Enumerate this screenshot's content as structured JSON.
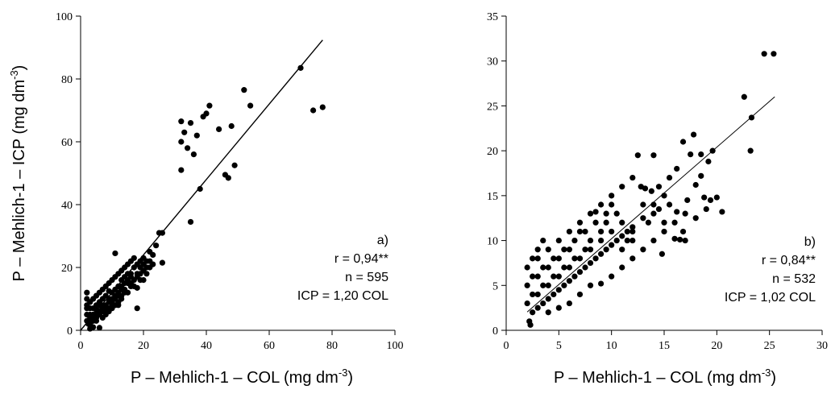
{
  "chart_data": [
    {
      "type": "scatter",
      "panel_label": "a)",
      "stats": [
        "r = 0,94**",
        "n = 595",
        "ICP = 1,20 COL"
      ],
      "x_label": "P – Mehlich-1 – COL (mg dm",
      "x_label_sup": "-3",
      "x_label_close": ")",
      "y_label": "P – Mehlich-1 – ICP (mg dm",
      "y_label_sup": "-3",
      "y_label_close": ")",
      "xlim": [
        0,
        100
      ],
      "ylim": [
        0,
        100
      ],
      "xticks": [
        0,
        20,
        40,
        60,
        80,
        100
      ],
      "yticks": [
        0,
        20,
        40,
        60,
        80,
        100
      ],
      "ytick_labels": [
        "0",
        "20",
        "40",
        "60",
        "80",
        "100"
      ],
      "xtick_labels": [
        "0",
        "20",
        "40",
        "60",
        "80",
        "100"
      ],
      "grid": false,
      "fit_line": {
        "slope": 1.2,
        "x_range": [
          0,
          77
        ]
      },
      "points": [
        [
          32,
          66.5
        ],
        [
          33,
          63
        ],
        [
          35,
          66
        ],
        [
          32,
          60
        ],
        [
          32,
          51
        ],
        [
          34,
          58
        ],
        [
          36,
          56
        ],
        [
          37,
          62
        ],
        [
          38,
          45
        ],
        [
          39,
          68
        ],
        [
          40,
          69
        ],
        [
          41,
          71.5
        ],
        [
          44,
          64
        ],
        [
          46,
          49.5
        ],
        [
          47,
          48.5
        ],
        [
          48,
          65
        ],
        [
          49,
          52.5
        ],
        [
          52,
          76.5
        ],
        [
          54,
          71.5
        ],
        [
          70,
          83.5
        ],
        [
          74,
          70
        ],
        [
          77,
          71
        ],
        [
          35,
          34.5
        ],
        [
          25,
          31
        ],
        [
          26,
          31
        ],
        [
          24,
          27
        ],
        [
          22,
          25
        ],
        [
          21,
          22
        ],
        [
          26,
          21.5
        ],
        [
          20,
          19
        ],
        [
          19,
          16
        ],
        [
          18,
          13.5
        ],
        [
          18,
          7
        ],
        [
          15,
          15
        ],
        [
          13,
          13
        ],
        [
          12,
          11
        ],
        [
          11,
          24.5
        ],
        [
          10,
          9
        ],
        [
          9,
          12.5
        ],
        [
          8,
          7
        ],
        [
          7,
          10
        ],
        [
          6,
          8
        ],
        [
          5,
          6.5
        ],
        [
          4,
          5
        ],
        [
          3,
          4
        ],
        [
          3,
          7
        ],
        [
          2,
          3
        ],
        [
          2,
          10
        ],
        [
          2,
          12
        ],
        [
          3,
          0.5
        ],
        [
          2.5,
          2
        ],
        [
          4,
          1
        ],
        [
          6,
          0.8
        ],
        [
          5,
          3
        ],
        [
          7,
          4
        ],
        [
          8,
          5
        ],
        [
          9,
          6
        ],
        [
          10,
          8
        ],
        [
          11,
          10
        ],
        [
          12,
          14
        ],
        [
          13,
          16
        ],
        [
          14,
          12
        ],
        [
          15,
          18
        ],
        [
          16,
          17
        ],
        [
          17,
          20
        ],
        [
          16,
          14
        ],
        [
          14,
          17
        ],
        [
          13,
          10
        ],
        [
          12,
          8
        ],
        [
          11,
          13
        ],
        [
          10,
          12
        ],
        [
          9,
          10
        ],
        [
          8,
          11
        ],
        [
          7,
          8
        ],
        [
          6,
          9
        ],
        [
          5,
          8
        ],
        [
          4,
          7
        ],
        [
          3,
          5
        ],
        [
          2,
          5
        ],
        [
          2,
          7
        ],
        [
          2,
          8
        ],
        [
          3,
          9
        ],
        [
          4,
          10
        ],
        [
          5,
          11
        ],
        [
          6,
          12
        ],
        [
          7,
          13
        ],
        [
          8,
          14
        ],
        [
          9,
          15
        ],
        [
          10,
          16
        ],
        [
          11,
          17
        ],
        [
          12,
          18
        ],
        [
          13,
          19
        ],
        [
          14,
          20
        ],
        [
          15,
          21
        ],
        [
          16,
          22
        ],
        [
          17,
          23
        ],
        [
          18,
          21
        ],
        [
          19,
          20
        ],
        [
          20,
          23
        ],
        [
          21,
          18
        ],
        [
          22,
          20
        ],
        [
          23,
          24
        ],
        [
          3,
          3
        ],
        [
          4,
          4
        ],
        [
          5,
          5
        ],
        [
          6,
          6
        ],
        [
          7,
          7
        ],
        [
          8,
          8
        ],
        [
          9,
          9
        ],
        [
          10,
          10
        ],
        [
          11,
          11
        ],
        [
          12,
          12
        ],
        [
          13,
          14
        ],
        [
          14,
          15
        ],
        [
          15,
          16
        ],
        [
          16,
          18
        ],
        [
          17,
          16
        ],
        [
          18,
          18
        ],
        [
          19,
          22
        ],
        [
          20,
          21
        ],
        [
          3,
          2
        ],
        [
          4,
          3
        ],
        [
          5,
          4
        ],
        [
          6,
          5
        ],
        [
          7,
          6
        ],
        [
          8,
          6
        ],
        [
          9,
          7
        ],
        [
          10,
          7
        ],
        [
          11,
          8
        ],
        [
          12,
          9
        ],
        [
          13,
          11
        ],
        [
          14,
          13
        ],
        [
          15,
          12
        ],
        [
          16,
          15
        ],
        [
          17,
          14
        ],
        [
          18,
          17
        ],
        [
          19,
          18
        ],
        [
          20,
          16
        ],
        [
          21,
          20
        ],
        [
          22,
          22
        ],
        [
          23,
          21
        ]
      ]
    },
    {
      "type": "scatter",
      "panel_label": "b)",
      "stats": [
        "r = 0,84**",
        "n = 532",
        "ICP = 1,02 COL"
      ],
      "x_label": "P – Mehlich-1 – COL (mg dm",
      "x_label_sup": "-3",
      "x_label_close": ")",
      "xlim": [
        0,
        30
      ],
      "ylim": [
        0,
        35
      ],
      "xticks": [
        0,
        5,
        10,
        15,
        20,
        25,
        30
      ],
      "yticks": [
        0,
        5,
        10,
        15,
        20,
        25,
        30,
        35
      ],
      "xtick_labels": [
        "0",
        "5",
        "10",
        "15",
        "20",
        "25",
        "30"
      ],
      "ytick_labels": [
        "0",
        "5",
        "10",
        "15",
        "20",
        "25",
        "30",
        "35"
      ],
      "grid": false,
      "fit_line": {
        "slope": 1.02,
        "x_range": [
          2,
          25.5
        ]
      },
      "points": [
        [
          24.5,
          30.8
        ],
        [
          25.4,
          30.8
        ],
        [
          22.6,
          26
        ],
        [
          23.3,
          23.7
        ],
        [
          23.2,
          20
        ],
        [
          20.5,
          13.2
        ],
        [
          20,
          14.8
        ],
        [
          19.4,
          14.5
        ],
        [
          18.8,
          14.8
        ],
        [
          19.6,
          20
        ],
        [
          19.2,
          18.8
        ],
        [
          18.5,
          19.6
        ],
        [
          17.8,
          21.8
        ],
        [
          17.5,
          19.6
        ],
        [
          16.8,
          21
        ],
        [
          16.2,
          18
        ],
        [
          15.5,
          17
        ],
        [
          14.5,
          16
        ],
        [
          14,
          19.5
        ],
        [
          13.8,
          15.5
        ],
        [
          14.8,
          8.5
        ],
        [
          16,
          10.2
        ],
        [
          16.5,
          10.1
        ],
        [
          16.2,
          13.2
        ],
        [
          17.2,
          14.5
        ],
        [
          18.5,
          17.2
        ],
        [
          18,
          16.2
        ],
        [
          15,
          12
        ],
        [
          14,
          13
        ],
        [
          13,
          14
        ],
        [
          12.5,
          19.5
        ],
        [
          12.8,
          16
        ],
        [
          13.5,
          12
        ],
        [
          12,
          11
        ],
        [
          11.5,
          10
        ],
        [
          11,
          12
        ],
        [
          10.5,
          13
        ],
        [
          10,
          14
        ],
        [
          9.5,
          12
        ],
        [
          9,
          11
        ],
        [
          8.5,
          13.2
        ],
        [
          8,
          10
        ],
        [
          7.5,
          9
        ],
        [
          7,
          11
        ],
        [
          6.5,
          8
        ],
        [
          6,
          9
        ],
        [
          5.5,
          7
        ],
        [
          5,
          8
        ],
        [
          4.5,
          6
        ],
        [
          4,
          7
        ],
        [
          3.5,
          5
        ],
        [
          3,
          6
        ],
        [
          2.5,
          4
        ],
        [
          2,
          5
        ],
        [
          2,
          3
        ],
        [
          2.2,
          1
        ],
        [
          2.3,
          0.6
        ],
        [
          2.5,
          2
        ],
        [
          3,
          2.5
        ],
        [
          3.5,
          3
        ],
        [
          4,
          3.5
        ],
        [
          4.5,
          4
        ],
        [
          5,
          4.5
        ],
        [
          5.5,
          5
        ],
        [
          6,
          5.5
        ],
        [
          6.5,
          6
        ],
        [
          7,
          6.5
        ],
        [
          7.5,
          7
        ],
        [
          8,
          7.5
        ],
        [
          8.5,
          8
        ],
        [
          9,
          8.5
        ],
        [
          9.5,
          9
        ],
        [
          10,
          9.5
        ],
        [
          10.5,
          10
        ],
        [
          11,
          10.5
        ],
        [
          11.5,
          11
        ],
        [
          12,
          11.5
        ],
        [
          13,
          12.5
        ],
        [
          14,
          14
        ],
        [
          15,
          15
        ],
        [
          3,
          8
        ],
        [
          4,
          9
        ],
        [
          5,
          10
        ],
        [
          6,
          11
        ],
        [
          7,
          12
        ],
        [
          8,
          13
        ],
        [
          9,
          14
        ],
        [
          10,
          15
        ],
        [
          11,
          16
        ],
        [
          12,
          17
        ],
        [
          3,
          4
        ],
        [
          4,
          5
        ],
        [
          5,
          6
        ],
        [
          6,
          7
        ],
        [
          7,
          8
        ],
        [
          8,
          9
        ],
        [
          9,
          10
        ],
        [
          10,
          11
        ],
        [
          11,
          9
        ],
        [
          12,
          10
        ],
        [
          2.5,
          6
        ],
        [
          3.5,
          7
        ],
        [
          4.5,
          8
        ],
        [
          5.5,
          9
        ],
        [
          6.5,
          10
        ],
        [
          7.5,
          11
        ],
        [
          8.5,
          12
        ],
        [
          9.5,
          13
        ],
        [
          2,
          7
        ],
        [
          2.5,
          8
        ],
        [
          3,
          9
        ],
        [
          3.5,
          10
        ],
        [
          4,
          2
        ],
        [
          5,
          2.5
        ],
        [
          6,
          3
        ],
        [
          7,
          4
        ],
        [
          8,
          5
        ],
        [
          9,
          5.2
        ],
        [
          10,
          6
        ],
        [
          11,
          7
        ],
        [
          12,
          8
        ],
        [
          13,
          9
        ],
        [
          14,
          10
        ],
        [
          15,
          11
        ],
        [
          16,
          12
        ],
        [
          17,
          13
        ],
        [
          18,
          12.5
        ],
        [
          19,
          13.5
        ],
        [
          17,
          10
        ],
        [
          16.8,
          11
        ],
        [
          15.5,
          14
        ],
        [
          14.5,
          13.5
        ],
        [
          13.2,
          15.8
        ]
      ]
    }
  ]
}
